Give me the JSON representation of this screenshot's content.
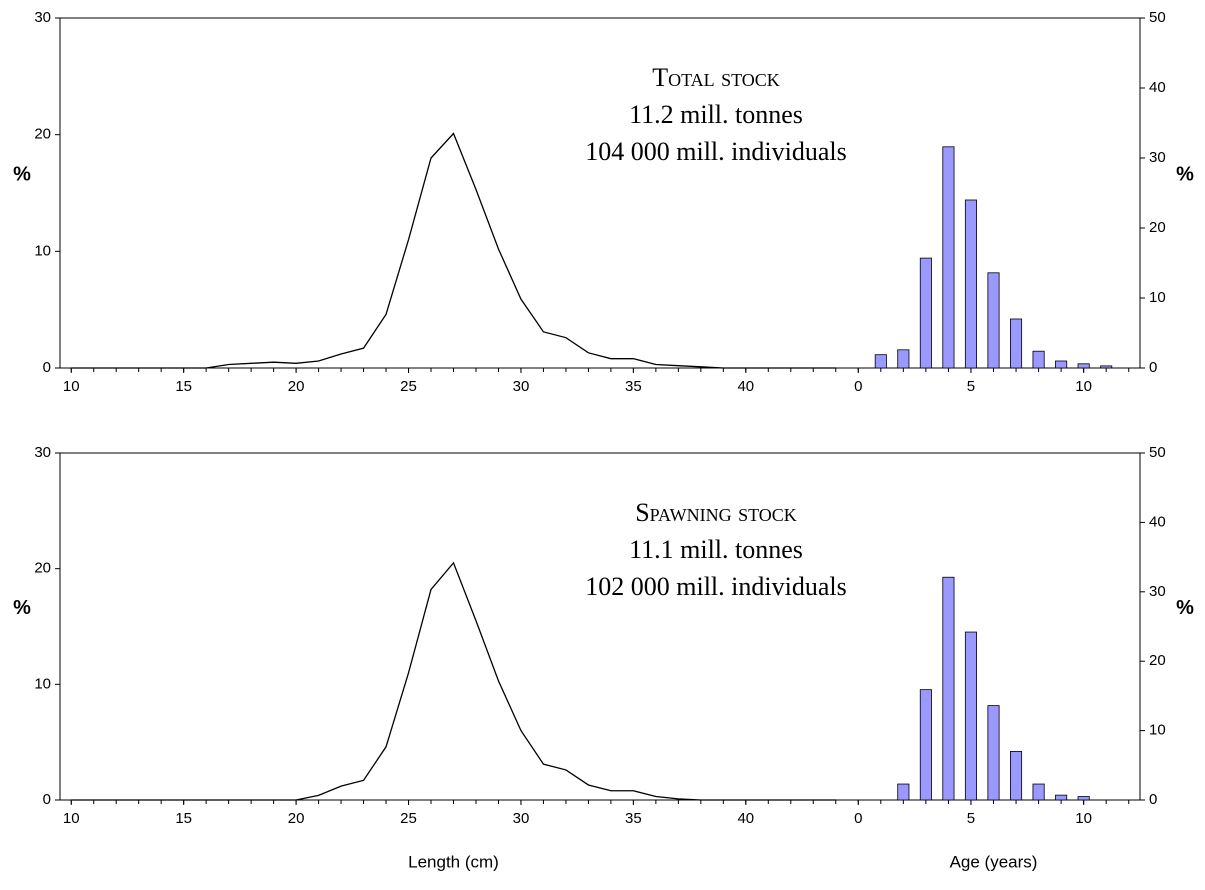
{
  "chart_data": [
    {
      "type": "line",
      "yaxis": "left",
      "color": "#000000",
      "x": [
        10,
        11,
        12,
        13,
        14,
        15,
        16,
        17,
        18,
        19,
        20,
        21,
        22,
        23,
        24,
        25,
        26,
        27,
        28,
        29,
        30,
        31,
        32,
        33,
        34,
        35,
        36,
        37,
        38,
        39,
        40,
        41,
        42,
        43,
        44
      ],
      "values": [
        0,
        0,
        0,
        0,
        0,
        0,
        0,
        0.3,
        0.4,
        0.5,
        0.4,
        0.6,
        1.2,
        1.7,
        4.6,
        11,
        18,
        20.1,
        15.3,
        10.2,
        5.9,
        3.1,
        2.6,
        1.3,
        0.8,
        0.8,
        0.3,
        0.2,
        0.1,
        0,
        0,
        0,
        0,
        0,
        0
      ],
      "xlim": [
        9.5,
        44.5
      ],
      "xticks": [
        10,
        15,
        20,
        25,
        30,
        35,
        40
      ],
      "ylim": [
        0,
        30
      ],
      "yticks": [
        0,
        10,
        20,
        30
      ],
      "ylabel": "%",
      "annotation": [
        "Total stock",
        "11.2 mill. tonnes",
        "104 000 mill. individuals"
      ]
    },
    {
      "type": "bar",
      "yaxis": "right",
      "color": "#9999ff",
      "x": [
        1,
        2,
        3,
        4,
        5,
        6,
        7,
        8,
        9,
        10,
        11
      ],
      "values": [
        1.9,
        2.6,
        15.7,
        31.6,
        24,
        13.6,
        7,
        2.4,
        1,
        0.6,
        0.3
      ],
      "xlim": [
        -0.5,
        12.5
      ],
      "xticks": [
        0,
        5,
        10
      ],
      "ylim": [
        0,
        50
      ],
      "yticks": [
        0,
        10,
        20,
        30,
        40,
        50
      ],
      "ylabel": "%"
    },
    {
      "type": "line",
      "yaxis": "left",
      "color": "#000000",
      "x": [
        10,
        11,
        12,
        13,
        14,
        15,
        16,
        17,
        18,
        19,
        20,
        21,
        22,
        23,
        24,
        25,
        26,
        27,
        28,
        29,
        30,
        31,
        32,
        33,
        34,
        35,
        36,
        37,
        38,
        39,
        40,
        41,
        42,
        43,
        44
      ],
      "values": [
        0,
        0,
        0,
        0,
        0,
        0,
        0,
        0,
        0,
        0,
        0,
        0.4,
        1.2,
        1.7,
        4.6,
        11,
        18.2,
        20.5,
        15.5,
        10.3,
        6,
        3.1,
        2.6,
        1.3,
        0.8,
        0.8,
        0.3,
        0.1,
        0,
        0,
        0,
        0,
        0,
        0,
        0
      ],
      "xlim": [
        9.5,
        44.5
      ],
      "xticks": [
        10,
        15,
        20,
        25,
        30,
        35,
        40
      ],
      "ylim": [
        0,
        30
      ],
      "yticks": [
        0,
        10,
        20,
        30
      ],
      "ylabel": "%",
      "xlabel": "Length (cm)",
      "annotation": [
        "Spawning stock",
        "11.1 mill. tonnes",
        "102 000 mill. individuals"
      ]
    },
    {
      "type": "bar",
      "yaxis": "right",
      "color": "#9999ff",
      "x": [
        2,
        3,
        4,
        5,
        6,
        7,
        8,
        9,
        10
      ],
      "values": [
        2.3,
        15.9,
        32.1,
        24.2,
        13.6,
        7,
        2.3,
        0.7,
        0.5
      ],
      "xlim": [
        -0.5,
        12.5
      ],
      "xticks": [
        0,
        5,
        10
      ],
      "ylim": [
        0,
        50
      ],
      "yticks": [
        0,
        10,
        20,
        30,
        40,
        50
      ],
      "ylabel": "%",
      "xlabel": "Age (years)"
    }
  ]
}
